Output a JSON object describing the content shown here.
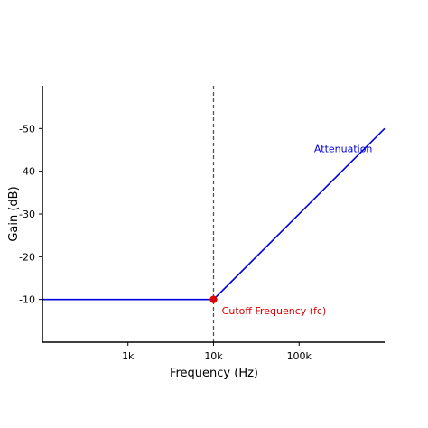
{
  "chart_data": {
    "type": "line",
    "title": "",
    "xlabel": "Frequency (Hz)",
    "ylabel": "Gain (dB)",
    "x_scale": "log",
    "xlim": [
      100,
      1000000
    ],
    "ylim": [
      0,
      -60
    ],
    "x_ticks": [
      {
        "value": 1000,
        "label": "1k"
      },
      {
        "value": 10000,
        "label": "10k"
      },
      {
        "value": 100000,
        "label": "100k"
      }
    ],
    "y_ticks": [
      {
        "value": -10,
        "label": "-10"
      },
      {
        "value": -20,
        "label": "-20"
      },
      {
        "value": -30,
        "label": "-30"
      },
      {
        "value": -40,
        "label": "-40"
      },
      {
        "value": -50,
        "label": "-50"
      }
    ],
    "grid": false,
    "series": [
      {
        "color": "#0000dd",
        "x": [
          100,
          10000,
          1000000
        ],
        "y": [
          -10,
          -10,
          -50
        ]
      }
    ],
    "cutoff": {
      "x": 10000,
      "y": -10,
      "label": "Cutoff Frequency (fc)",
      "color": "#dd0000",
      "line_style": "dashed"
    },
    "annotations": [
      {
        "text": "Attenuation",
        "x": 150000,
        "y": -44.5,
        "color": "#0000dd"
      },
      {
        "text": "Cutoff Frequency (fc)",
        "x": 12500,
        "y": -6.5,
        "color": "#dd0000"
      }
    ]
  }
}
